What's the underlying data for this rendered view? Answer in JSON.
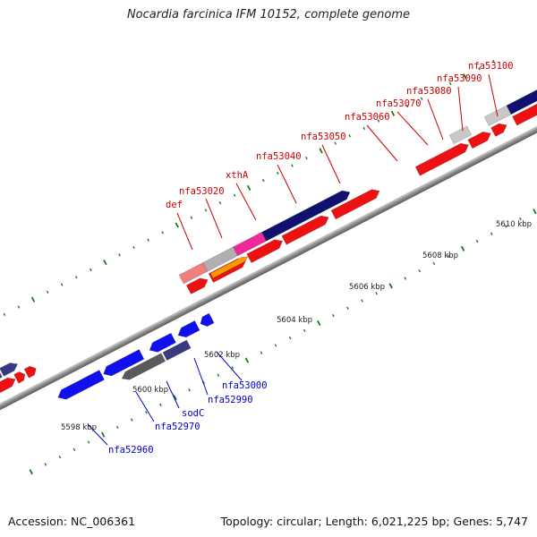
{
  "title": "Nocardia farcinica IFM 10152, complete genome",
  "footer": {
    "accession": "Accession: NC_006361",
    "summary": "Topology: circular; Length: 6,021,225 bp; Genes: 5,747"
  },
  "colors": {
    "forward_label": "#cc0000",
    "reverse_label": "#0000cc",
    "backbone": "#8c8c8c",
    "tick": "#1a7a1a"
  },
  "scale": {
    "labels": [
      "5598 kbp",
      "5600 kbp",
      "5602 kbp",
      "5604 kbp",
      "5606 kbp",
      "5608 kbp",
      "5610 kbp"
    ]
  },
  "forward_genes": [
    "def",
    "nfa53020",
    "xthA",
    "nfa53040",
    "nfa53050",
    "nfa53060",
    "nfa53070",
    "nfa53080",
    "nfa53090",
    "nfa53100"
  ],
  "reverse_genes": [
    "nfa52960",
    "nfa52970",
    "sodC",
    "nfa52990",
    "nfa53000"
  ]
}
